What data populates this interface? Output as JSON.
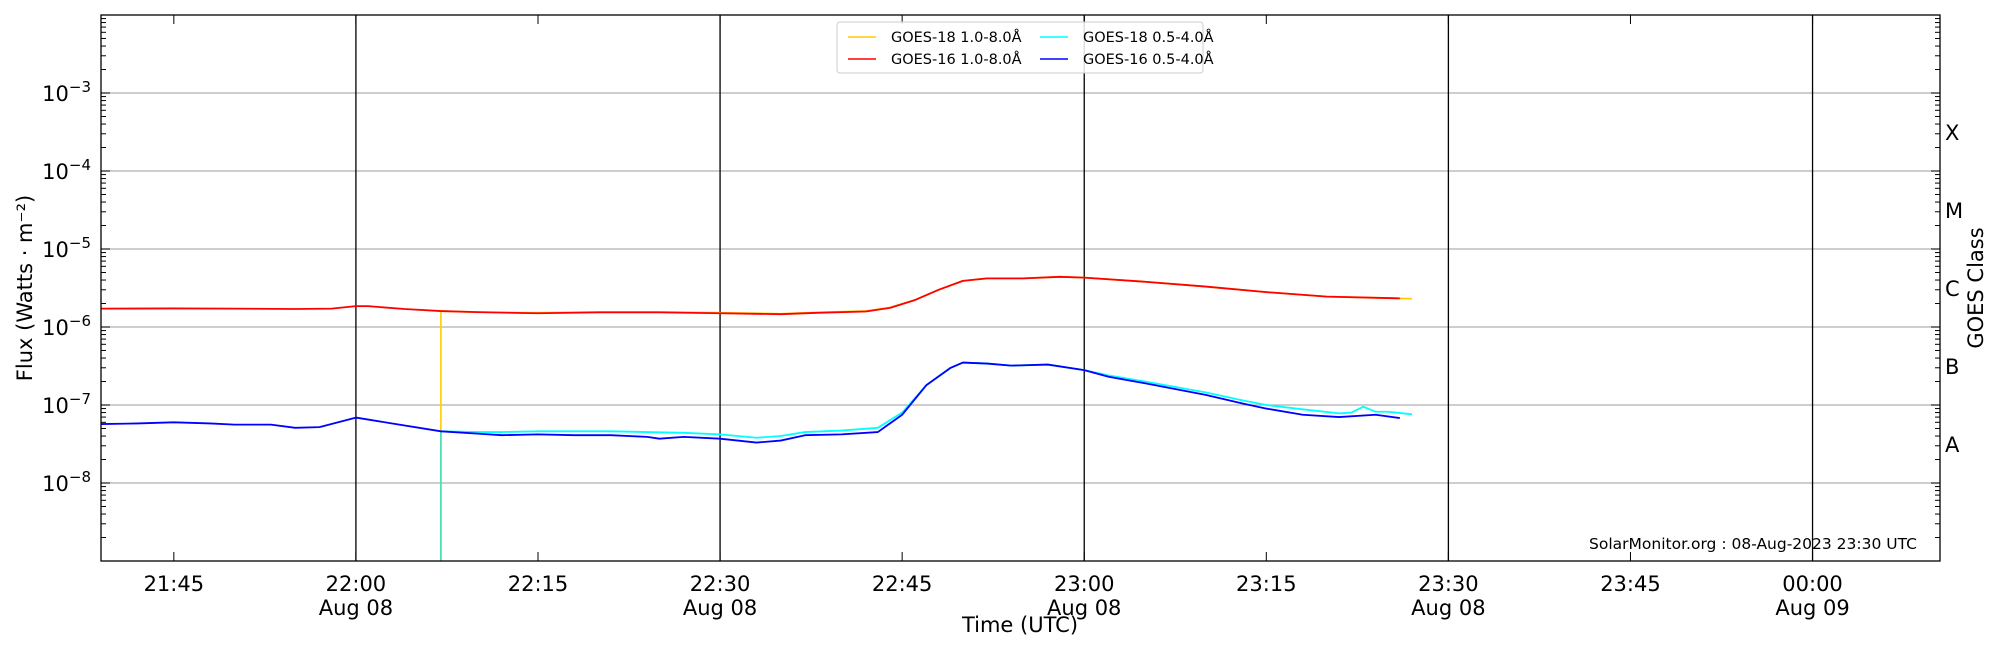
{
  "chart_data": {
    "type": "line",
    "title": "",
    "xlabel": "Time (UTC)",
    "ylabel": "Flux (Watts · m⁻²)",
    "ylabel_right": "GOES Class",
    "y_scale": "log",
    "ylim": [
      1e-09,
      0.01
    ],
    "xlim": [
      "21:39",
      "00:10"
    ],
    "grid": "horizontal at each decade",
    "legend_placement": "top-center",
    "watermark": "SolarMonitor.org : 08-Aug-2023 23:30 UTC",
    "y_ticks": [
      {
        "value": 1e-08,
        "base": "10",
        "exp": "−8"
      },
      {
        "value": 1e-07,
        "base": "10",
        "exp": "−7"
      },
      {
        "value": 1e-06,
        "base": "10",
        "exp": "−6"
      },
      {
        "value": 1e-05,
        "base": "10",
        "exp": "−5"
      },
      {
        "value": 0.0001,
        "base": "10",
        "exp": "−4"
      },
      {
        "value": 0.001,
        "base": "10",
        "exp": "−3"
      }
    ],
    "x_ticks": [
      {
        "time": "21:45",
        "label": "21:45",
        "date": ""
      },
      {
        "time": "22:00",
        "label": "22:00",
        "date": "Aug 08"
      },
      {
        "time": "22:15",
        "label": "22:15",
        "date": ""
      },
      {
        "time": "22:30",
        "label": "22:30",
        "date": "Aug 08"
      },
      {
        "time": "22:45",
        "label": "22:45",
        "date": ""
      },
      {
        "time": "23:00",
        "label": "23:00",
        "date": "Aug 08"
      },
      {
        "time": "23:15",
        "label": "23:15",
        "date": ""
      },
      {
        "time": "23:30",
        "label": "23:30",
        "date": "Aug 08"
      },
      {
        "time": "23:45",
        "label": "23:45",
        "date": ""
      },
      {
        "time": "00:00",
        "label": "00:00",
        "date": "Aug 09"
      }
    ],
    "vertical_lines": [
      "22:00",
      "22:30",
      "23:00",
      "23:30",
      "00:00"
    ],
    "goes_classes": [
      {
        "label": "A",
        "value": 3.16e-08
      },
      {
        "label": "B",
        "value": 3.16e-07
      },
      {
        "label": "C",
        "value": 3.16e-06
      },
      {
        "label": "M",
        "value": 3.16e-05
      },
      {
        "label": "X",
        "value": 0.000316
      }
    ],
    "series": [
      {
        "name": "GOES-18 1.0-8.0Å",
        "color": "#ffcc00",
        "drop_to_axis_at_start": true,
        "points": [
          [
            "22:07",
            1.6e-06
          ],
          [
            "22:10",
            1.55e-06
          ],
          [
            "22:15",
            1.52e-06
          ],
          [
            "22:20",
            1.56e-06
          ],
          [
            "22:25",
            1.56e-06
          ],
          [
            "22:30",
            1.52e-06
          ],
          [
            "22:35",
            1.48e-06
          ],
          [
            "22:38",
            1.54e-06
          ],
          [
            "22:42",
            1.6e-06
          ],
          [
            "22:44",
            1.78e-06
          ],
          [
            "22:46",
            2.2e-06
          ],
          [
            "22:48",
            3e-06
          ],
          [
            "22:50",
            3.9e-06
          ],
          [
            "22:52",
            4.2e-06
          ],
          [
            "22:55",
            4.2e-06
          ],
          [
            "22:58",
            4.4e-06
          ],
          [
            "23:00",
            4.3e-06
          ],
          [
            "23:05",
            3.8e-06
          ],
          [
            "23:10",
            3.3e-06
          ],
          [
            "23:15",
            2.8e-06
          ],
          [
            "23:20",
            2.45e-06
          ],
          [
            "23:25",
            2.35e-06
          ],
          [
            "23:27",
            2.3e-06
          ]
        ]
      },
      {
        "name": "GOES-16 1.0-8.0Å",
        "color": "#ff0000",
        "drop_to_axis_at_start": false,
        "points": [
          [
            "21:39",
            1.72e-06
          ],
          [
            "21:45",
            1.73e-06
          ],
          [
            "21:50",
            1.72e-06
          ],
          [
            "21:55",
            1.7e-06
          ],
          [
            "21:58",
            1.72e-06
          ],
          [
            "22:00",
            1.85e-06
          ],
          [
            "22:01",
            1.85e-06
          ],
          [
            "22:04",
            1.7e-06
          ],
          [
            "22:07",
            1.6e-06
          ],
          [
            "22:10",
            1.55e-06
          ],
          [
            "22:15",
            1.5e-06
          ],
          [
            "22:20",
            1.54e-06
          ],
          [
            "22:25",
            1.54e-06
          ],
          [
            "22:30",
            1.5e-06
          ],
          [
            "22:35",
            1.46e-06
          ],
          [
            "22:38",
            1.52e-06
          ],
          [
            "22:42",
            1.58e-06
          ],
          [
            "22:44",
            1.76e-06
          ],
          [
            "22:46",
            2.2e-06
          ],
          [
            "22:48",
            3e-06
          ],
          [
            "22:50",
            3.9e-06
          ],
          [
            "22:52",
            4.2e-06
          ],
          [
            "22:55",
            4.2e-06
          ],
          [
            "22:58",
            4.4e-06
          ],
          [
            "23:00",
            4.3e-06
          ],
          [
            "23:05",
            3.8e-06
          ],
          [
            "23:10",
            3.3e-06
          ],
          [
            "23:15",
            2.8e-06
          ],
          [
            "23:20",
            2.45e-06
          ],
          [
            "23:26",
            2.33e-06
          ]
        ]
      },
      {
        "name": "GOES-18 0.5-4.0Å",
        "color": "#00ffff",
        "drop_to_axis_at_start": true,
        "points": [
          [
            "22:07",
            4.6e-08
          ],
          [
            "22:10",
            4.5e-08
          ],
          [
            "22:12",
            4.5e-08
          ],
          [
            "22:15",
            4.6e-08
          ],
          [
            "22:18",
            4.6e-08
          ],
          [
            "22:21",
            4.6e-08
          ],
          [
            "22:24",
            4.5e-08
          ],
          [
            "22:27",
            4.4e-08
          ],
          [
            "22:30",
            4.2e-08
          ],
          [
            "22:33",
            3.8e-08
          ],
          [
            "22:35",
            4e-08
          ],
          [
            "22:37",
            4.5e-08
          ],
          [
            "22:40",
            4.7e-08
          ],
          [
            "22:43",
            5.1e-08
          ],
          [
            "22:45",
            8e-08
          ],
          [
            "22:47",
            1.8e-07
          ],
          [
            "22:49",
            3e-07
          ],
          [
            "22:50",
            3.5e-07
          ],
          [
            "22:52",
            3.4e-07
          ],
          [
            "22:54",
            3.2e-07
          ],
          [
            "22:57",
            3.3e-07
          ],
          [
            "23:00",
            2.8e-07
          ],
          [
            "23:02",
            2.4e-07
          ],
          [
            "23:05",
            2e-07
          ],
          [
            "23:10",
            1.45e-07
          ],
          [
            "23:13",
            1.15e-07
          ],
          [
            "23:15",
            1e-07
          ],
          [
            "23:18",
            8.8e-08
          ],
          [
            "23:21",
            7.8e-08
          ],
          [
            "23:22",
            8e-08
          ],
          [
            "23:23",
            9.5e-08
          ],
          [
            "23:24",
            8.2e-08
          ],
          [
            "23:25",
            8.2e-08
          ],
          [
            "23:27",
            7.6e-08
          ]
        ]
      },
      {
        "name": "GOES-16 0.5-4.0Å",
        "color": "#0000ff",
        "drop_to_axis_at_start": false,
        "points": [
          [
            "21:39",
            5.7e-08
          ],
          [
            "21:42",
            5.8e-08
          ],
          [
            "21:45",
            6e-08
          ],
          [
            "21:48",
            5.8e-08
          ],
          [
            "21:50",
            5.6e-08
          ],
          [
            "21:53",
            5.6e-08
          ],
          [
            "21:55",
            5.1e-08
          ],
          [
            "21:57",
            5.2e-08
          ],
          [
            "22:00",
            6.9e-08
          ],
          [
            "22:03",
            5.8e-08
          ],
          [
            "22:07",
            4.6e-08
          ],
          [
            "22:10",
            4.3e-08
          ],
          [
            "22:12",
            4.1e-08
          ],
          [
            "22:15",
            4.2e-08
          ],
          [
            "22:18",
            4.1e-08
          ],
          [
            "22:21",
            4.1e-08
          ],
          [
            "22:24",
            3.9e-08
          ],
          [
            "22:25",
            3.7e-08
          ],
          [
            "22:27",
            3.9e-08
          ],
          [
            "22:30",
            3.7e-08
          ],
          [
            "22:33",
            3.3e-08
          ],
          [
            "22:35",
            3.5e-08
          ],
          [
            "22:37",
            4.1e-08
          ],
          [
            "22:40",
            4.2e-08
          ],
          [
            "22:43",
            4.5e-08
          ],
          [
            "22:45",
            7.5e-08
          ],
          [
            "22:47",
            1.8e-07
          ],
          [
            "22:49",
            3e-07
          ],
          [
            "22:50",
            3.5e-07
          ],
          [
            "22:52",
            3.4e-07
          ],
          [
            "22:54",
            3.2e-07
          ],
          [
            "22:57",
            3.3e-07
          ],
          [
            "23:00",
            2.8e-07
          ],
          [
            "23:02",
            2.3e-07
          ],
          [
            "23:05",
            1.9e-07
          ],
          [
            "23:10",
            1.35e-07
          ],
          [
            "23:13",
            1.05e-07
          ],
          [
            "23:15",
            9e-08
          ],
          [
            "23:18",
            7.5e-08
          ],
          [
            "23:21",
            7e-08
          ],
          [
            "23:24",
            7.5e-08
          ],
          [
            "23:26",
            6.8e-08
          ]
        ]
      }
    ]
  }
}
